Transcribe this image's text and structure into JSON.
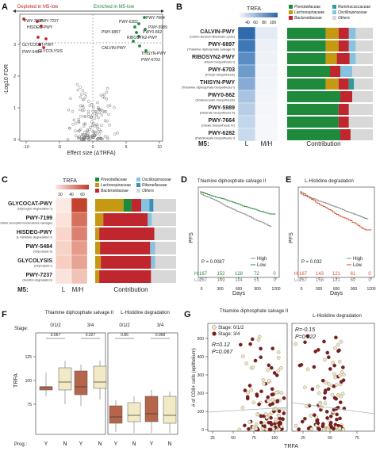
{
  "colors": {
    "depleted": "#c0262d",
    "enriched": "#1f8a3c",
    "prevotellaceae": "#1f8a3c",
    "lachnospiraceae": "#c59a12",
    "bacteroidaceae": "#c0262d",
    "ruminococcaceae": "#2e9a9a",
    "oscillospiraceae": "#87c2e0",
    "rikenellaceae": "#3a8fb8",
    "others": "#d8d8d8",
    "high": "#7a7a7a",
    "low_D": "#2d8a3a",
    "low_E": "#d94b2b",
    "prog_Y": "#b5654a",
    "prog_N": "#f2e9c5",
    "stage12": "#efe7c6",
    "stage34": "#7a1f1f"
  },
  "panel_A": {
    "letter": "A",
    "depleted_label": "Depleted in M5-low",
    "enriched_label": "Enriched in M5-low",
    "xlabel": "Effect size (ΔTRFA)",
    "ylabel": "-Log10 FDR",
    "x_ticks": [
      "-10",
      "-5",
      "0",
      "5",
      "10"
    ],
    "y_ticks": [
      "0",
      "1",
      "2",
      "3"
    ],
    "left_labels": [
      "PWY-7199",
      "PWY-7237",
      "HISDEG-PWY",
      "GLYCOCAT-PWY",
      "GLYCOLYSIS",
      "PWY-5484"
    ],
    "right_labels": [
      "PWY-7664",
      "PWY-6282",
      "PWY-5989",
      "PWY-6897",
      "PWY0-862",
      "RIBOSYN2-PWY",
      "CALVIN-PWY",
      "THISYN-PWY",
      "PWY-6703"
    ]
  },
  "panel_B": {
    "letter": "B",
    "legend_title": "TRFA",
    "legend_ticks": [
      "40",
      "60",
      "80",
      "100"
    ],
    "m5_label": "M5:",
    "col_L": "L",
    "col_MH": "M/H",
    "contribution_label": "Contribution",
    "rows": [
      {
        "name": "CALVIN-PWY",
        "sub": "(Calvin-Benson-Bassham cycle)"
      },
      {
        "name": "PWY-6897",
        "sub": "(Thiamine diphosphate salvage II)"
      },
      {
        "name": "RIBOSYN2-PWY",
        "sub": "(Flavin biosynthesis I)"
      },
      {
        "name": "PWY-6703",
        "sub": "(PreQ0 biosynthesis)"
      },
      {
        "name": "THISYN-PWY",
        "sub": "(Thiamine diphosphate biosynthesis I)"
      },
      {
        "name": "PWY0-862",
        "sub": "(Dodecenoate biosynthesis)"
      },
      {
        "name": "PWY-5989",
        "sub": "(Stearate biosynthesis II)"
      },
      {
        "name": "PWY-7664",
        "sub": "(Oleate biosynthesis IV)"
      },
      {
        "name": "PWY-6282",
        "sub": "(Palmitoleate biosynthesis I)"
      }
    ],
    "legend_items": [
      "Prevotellaceae",
      "Ruminococcaceae",
      "Lachnospiraceae",
      "Oscillospiraceae",
      "Bacteroidaceae",
      "Others"
    ]
  },
  "panel_C": {
    "letter": "C",
    "legend_title": "TRFA",
    "legend_ticks": [
      "20",
      "40",
      "60"
    ],
    "m5_label": "M5:",
    "col_L": "L",
    "col_MH": "M/H",
    "contribution_label": "Contribution",
    "rows": [
      {
        "name": "GLYCOCAT-PWY",
        "sub": "(Glycogen degradation I)"
      },
      {
        "name": "PWY-7199",
        "sub": "(Pyrimidine deoxyribonucleosides salvage)"
      },
      {
        "name": "HISDEG-PWY",
        "sub": "(L-histidine degradation I)"
      },
      {
        "name": "PWY-5484",
        "sub": "(Glycolysis II)"
      },
      {
        "name": "GLYCOLYSIS",
        "sub": "(Glycolysis I)"
      },
      {
        "name": "PWY-7237",
        "sub": "(Inositol degradation)"
      }
    ],
    "legend_items": [
      "Prevotellaceae",
      "Oscillospiraceae",
      "Lachnospiraceae",
      "Rikenellaceae",
      "Bacteroidaceae",
      "Others"
    ]
  },
  "panel_D": {
    "letter": "D",
    "title": "Thiamine diphosphate salvage II",
    "ylabel": "PFS",
    "xlabel": "Days",
    "p_value": "P = 0.0087",
    "legend_high": "High",
    "legend_low": "Low",
    "x_ticks": [
      "0",
      "300",
      "600",
      "900",
      "1200"
    ],
    "risk_hi_label": "Hi",
    "risk_lo_label": "Lo",
    "risk_hi": [
      "167",
      "152",
      "128",
      "72",
      "0"
    ],
    "risk_lo": [
      "167",
      "149",
      "114",
      "51",
      "0"
    ]
  },
  "panel_E": {
    "letter": "E",
    "title": "L-Histidine degradation",
    "ylabel": "PFS",
    "xlabel": "Days",
    "p_value": "P = 0.032",
    "legend_high": "High",
    "legend_low": "Low",
    "x_ticks": [
      "0",
      "300",
      "600",
      "900",
      "1200"
    ],
    "risk_hi_label": "Hi",
    "risk_lo_label": "Lo",
    "risk_hi": [
      "167",
      "143",
      "121",
      "61",
      "0"
    ],
    "risk_lo": [
      "167",
      "158",
      "121",
      "62",
      "0"
    ]
  },
  "panel_F": {
    "letter": "F",
    "title_left": "Thiamine diphosphate salvage II",
    "title_right": "L-Histidine degradation",
    "stage_label": "Stage:",
    "stage_12": "0/1/2",
    "stage_34": "3/4",
    "ylabel": "TRFA",
    "prog_label": "Prog.:",
    "y_ticks": [
      "75",
      "100",
      "125"
    ],
    "p_left": [
      "0.067",
      "0.027"
    ],
    "p_right": [
      "0.85",
      "0.068"
    ],
    "cat_Y": "Y",
    "cat_N": "N"
  },
  "panel_G": {
    "letter": "G",
    "title_left": "Thiamine diphosphate salvage II",
    "title_right": "L-Histidine degradation",
    "legend_stage12": "Stage: 0/1/2",
    "legend_stage34": "Stage: 3/4",
    "r_left": "R=0.12",
    "p_left": "P=0.067",
    "r_right": "R=-0.15",
    "p_right": "P=0.022",
    "ylabel": "# of CD8+ cells (epithelium)",
    "xlabel": "TRFA",
    "y_ticks": [
      "0",
      "100",
      "200",
      "300",
      "400",
      "500"
    ],
    "x_ticks_left": [
      "25",
      "50",
      "75",
      "100"
    ],
    "x_ticks_right": [
      "25",
      "50",
      "75"
    ]
  }
}
